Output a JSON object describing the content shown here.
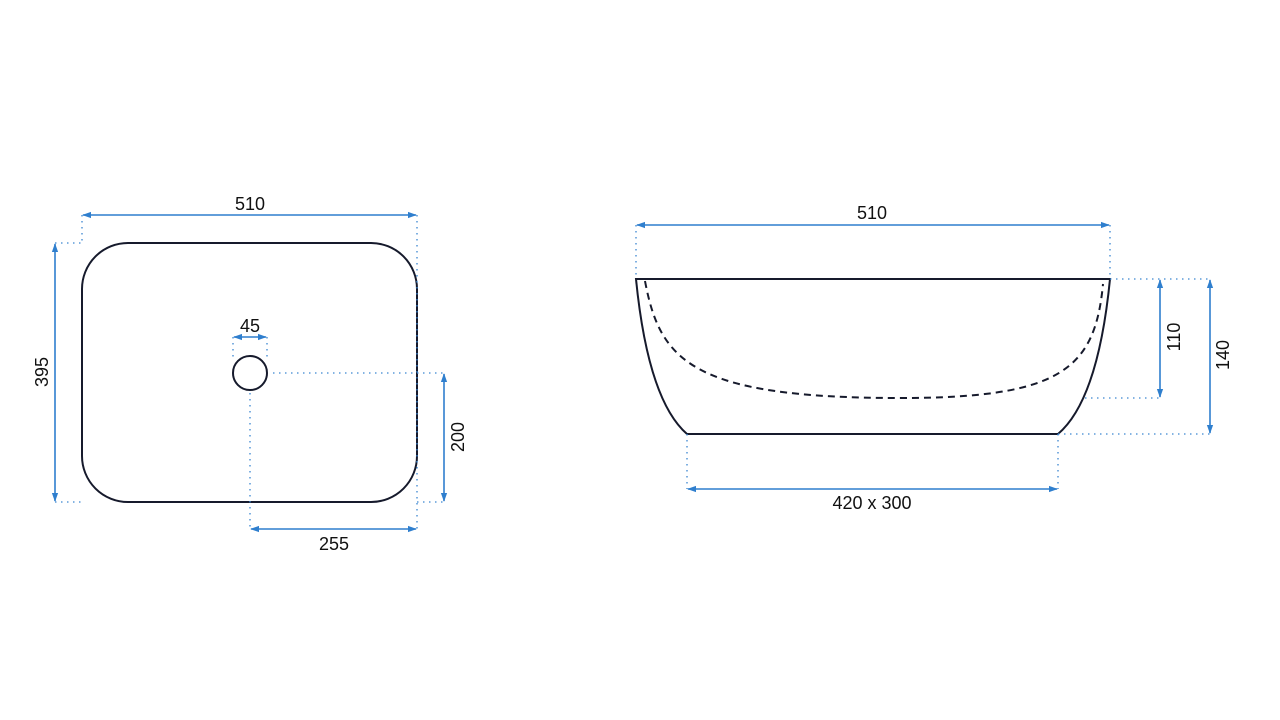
{
  "colors": {
    "outline": "#161a2c",
    "dimension": "#2f7fce"
  },
  "top_view": {
    "width_label": "510",
    "depth_label": "395",
    "drain_diameter_label": "45",
    "drain_offset_y_label": "200",
    "drain_offset_x_label": "255"
  },
  "side_view": {
    "width_label": "510",
    "inner_depth_label": "110",
    "height_label": "140",
    "base_label": "420 x 300"
  }
}
